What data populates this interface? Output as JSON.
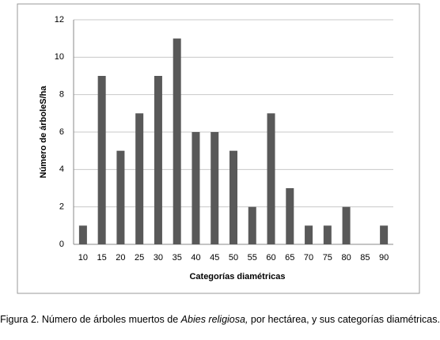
{
  "chart_data": {
    "type": "bar",
    "x_label": "Categorías diamétricas",
    "y_label": "Número de árboleS/ha",
    "categories": [
      "10",
      "15",
      "20",
      "25",
      "30",
      "35",
      "40",
      "45",
      "50",
      "55",
      "60",
      "65",
      "70",
      "75",
      "80",
      "85",
      "90"
    ],
    "values": [
      1,
      9,
      5,
      7,
      9,
      11,
      6,
      6,
      5,
      2,
      7,
      3,
      1,
      1,
      2,
      0,
      1
    ],
    "color": "#595959",
    "ylim": [
      0,
      12
    ],
    "yticks": [
      0,
      2,
      4,
      6,
      8,
      10,
      12
    ],
    "grid": true
  },
  "caption": {
    "parts": [
      "Figura 2. Número de árboles muertos de ",
      "Abies religiosa,",
      " por hectárea, y sus categorías diamétricas."
    ]
  }
}
